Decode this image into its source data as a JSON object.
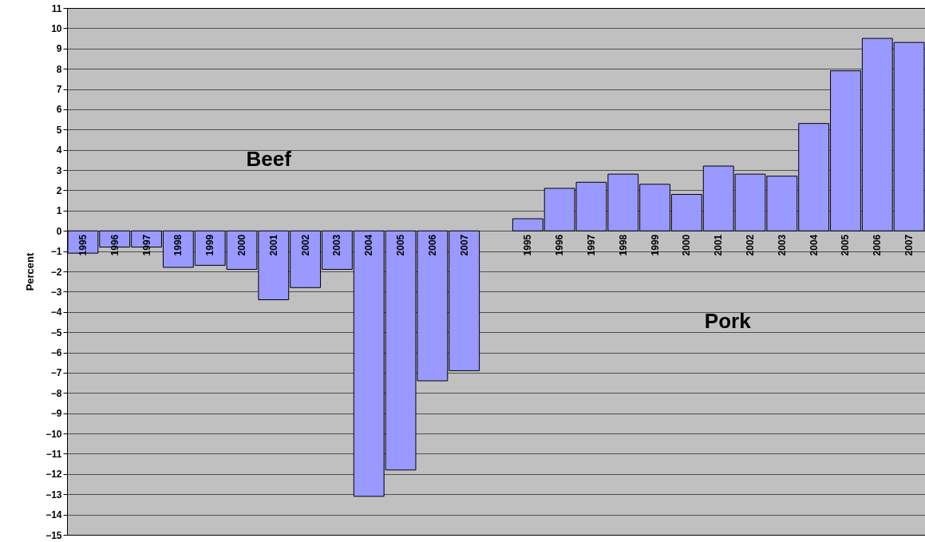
{
  "chart_data": {
    "type": "bar",
    "ylabel": "Percent",
    "categories": [
      "1995",
      "1996",
      "1997",
      "1998",
      "1999",
      "2000",
      "2001",
      "2002",
      "2003",
      "2004",
      "2005",
      "2006",
      "2007",
      null,
      "1995",
      "1996",
      "1997",
      "1998",
      "1999",
      "2000",
      "2001",
      "2002",
      "2003",
      "2004",
      "2005",
      "2006",
      "2007"
    ],
    "values": [
      -1.1,
      -0.8,
      -0.8,
      -1.8,
      -1.7,
      -1.9,
      -3.4,
      -2.8,
      -1.9,
      -13.1,
      -11.8,
      -7.4,
      -6.9,
      null,
      0.6,
      2.1,
      2.4,
      2.8,
      2.3,
      1.8,
      3.2,
      2.8,
      2.7,
      5.3,
      7.9,
      9.5,
      9.3
    ],
    "color": "#9999ff",
    "ylim": [
      -15,
      11
    ],
    "yticks": [
      -15,
      -14,
      -13,
      -12,
      -11,
      -10,
      -9,
      -8,
      -7,
      -6,
      -5,
      -4,
      -3,
      -2,
      -1,
      0,
      1,
      2,
      3,
      4,
      5,
      6,
      7,
      8,
      9,
      10,
      11
    ],
    "grid": "y",
    "annotations": [
      "Beef",
      "Pork"
    ]
  }
}
